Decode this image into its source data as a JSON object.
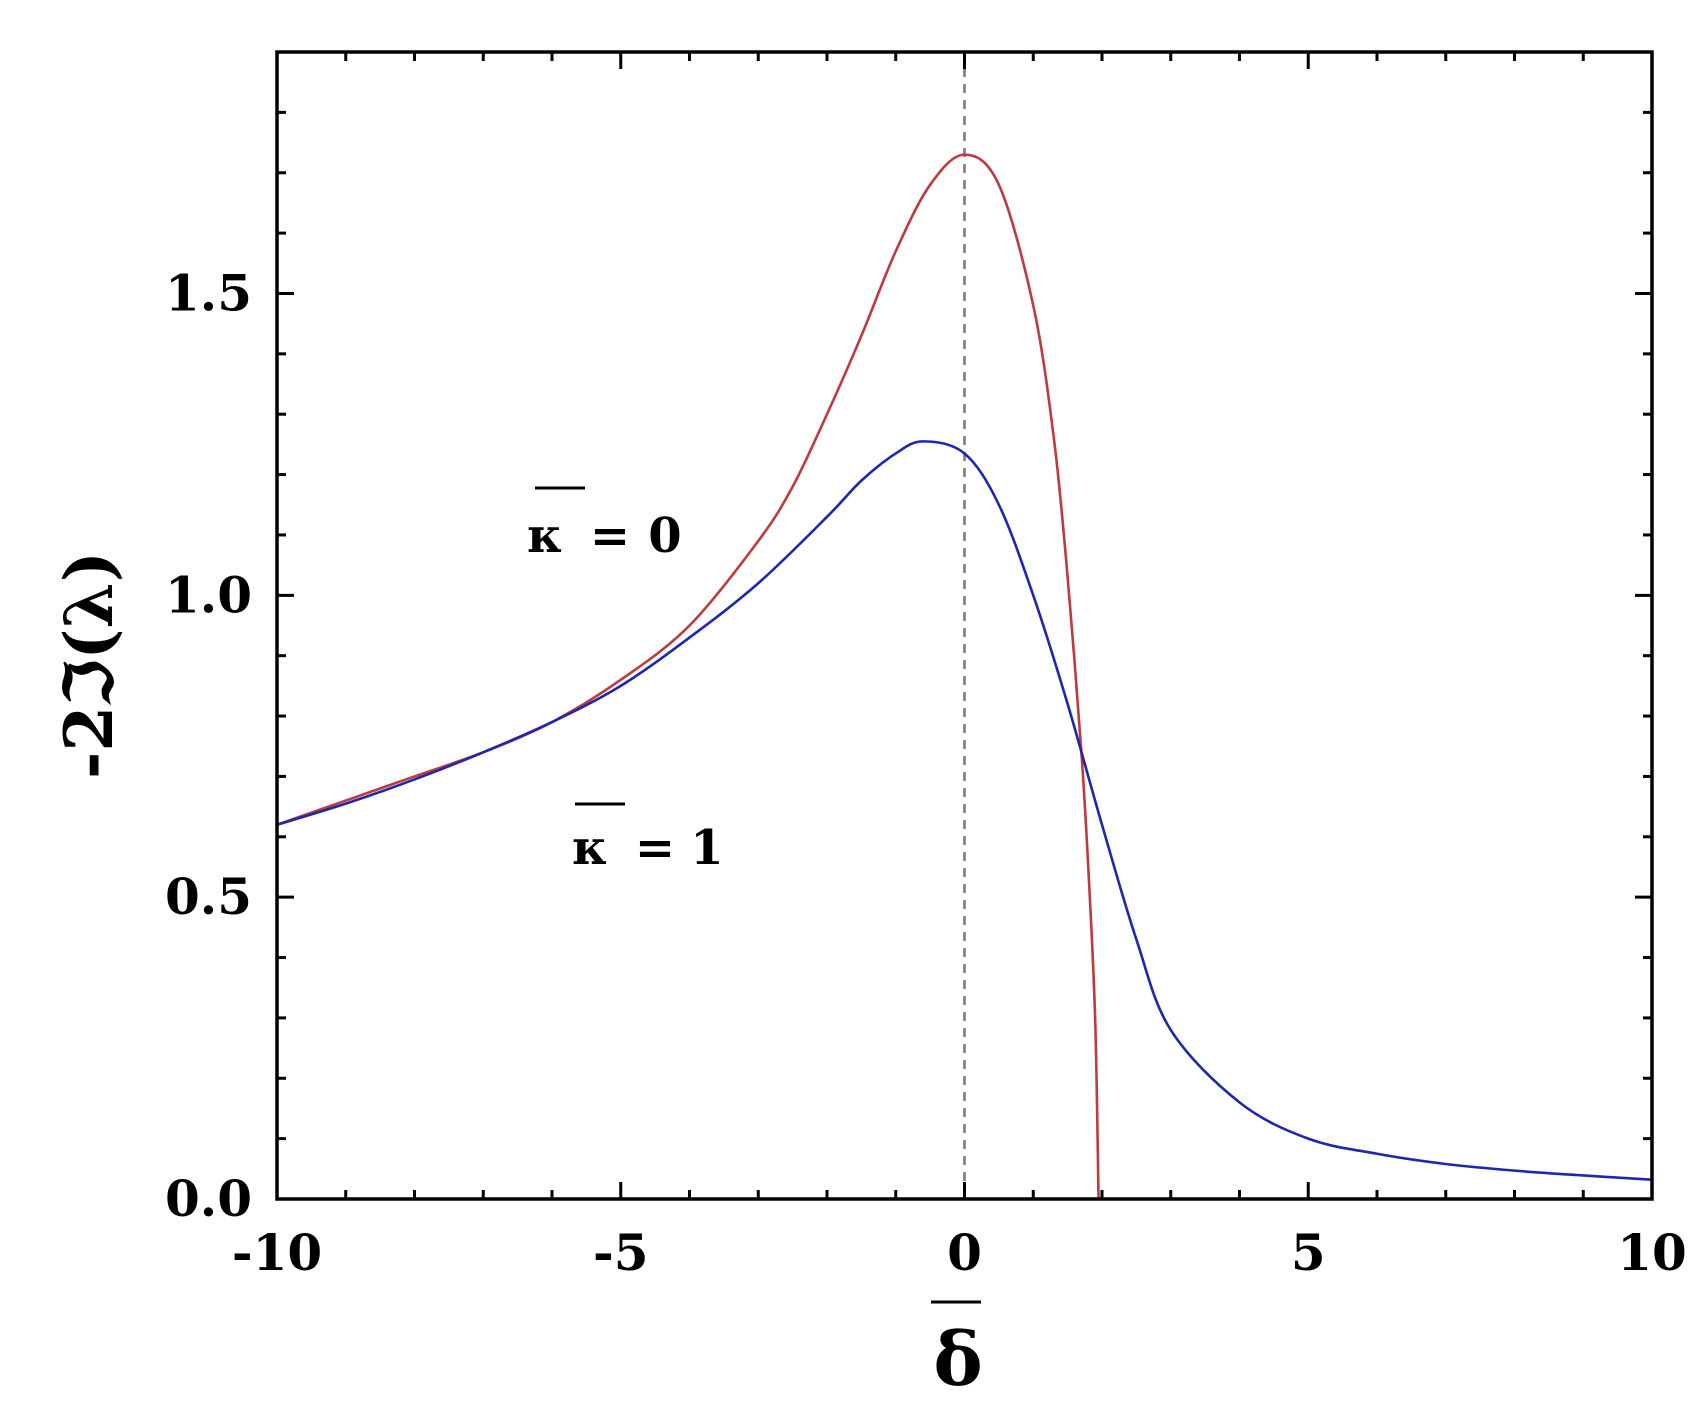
{
  "chart_data": {
    "type": "line",
    "xlabel": "δ",
    "ylabel": "-2ℑ(λ)",
    "xlim": [
      -10,
      10
    ],
    "ylim": [
      0,
      1.9
    ],
    "x_ticks": [
      -10,
      -5,
      0,
      5,
      10
    ],
    "x_tick_labels": [
      "-10",
      "-5",
      "0",
      "5",
      "10"
    ],
    "y_ticks": [
      0.0,
      0.5,
      1.0,
      1.5
    ],
    "y_tick_labels": [
      "0.0",
      "0.5",
      "1.0",
      "1.5"
    ],
    "grid": false,
    "reference_line": {
      "x": 0,
      "style": "dashed",
      "color": "#777777"
    },
    "annotations": [
      {
        "text": "κ=0",
        "symbol": "κ",
        "eq": "=",
        "value": "0",
        "near_x": -4.0,
        "near_y": 1.1
      },
      {
        "text": "κ=1",
        "symbol": "κ",
        "eq": "=",
        "value": "1",
        "near_x": -3.5,
        "near_y": 0.58
      }
    ],
    "series": [
      {
        "color": "#c0393f",
        "x": [
          -10,
          -9,
          -8,
          -7,
          -6,
          -5,
          -4,
          -3,
          -2.5,
          -2,
          -1.5,
          -1,
          -0.5,
          0,
          0.5,
          1,
          1.3,
          1.5,
          1.7,
          1.8,
          1.9,
          1.95
        ],
        "y": [
          0.62,
          0.66,
          0.7,
          0.74,
          0.79,
          0.86,
          0.95,
          1.09,
          1.18,
          1.3,
          1.43,
          1.57,
          1.68,
          1.73,
          1.68,
          1.48,
          1.26,
          1.03,
          0.74,
          0.55,
          0.3,
          0.0
        ]
      },
      {
        "color": "#1c27b0",
        "x": [
          -10,
          -9,
          -8,
          -7,
          -6,
          -5,
          -4,
          -3,
          -2,
          -1.5,
          -1,
          -0.6,
          0,
          0.5,
          1,
          1.5,
          2,
          2.5,
          3,
          4,
          5,
          6,
          7,
          8,
          9,
          10
        ],
        "y": [
          0.62,
          0.655,
          0.695,
          0.74,
          0.79,
          0.85,
          0.93,
          1.02,
          1.13,
          1.19,
          1.235,
          1.255,
          1.235,
          1.15,
          1.0,
          0.82,
          0.62,
          0.43,
          0.28,
          0.16,
          0.1,
          0.075,
          0.058,
          0.047,
          0.039,
          0.032
        ]
      }
    ]
  }
}
